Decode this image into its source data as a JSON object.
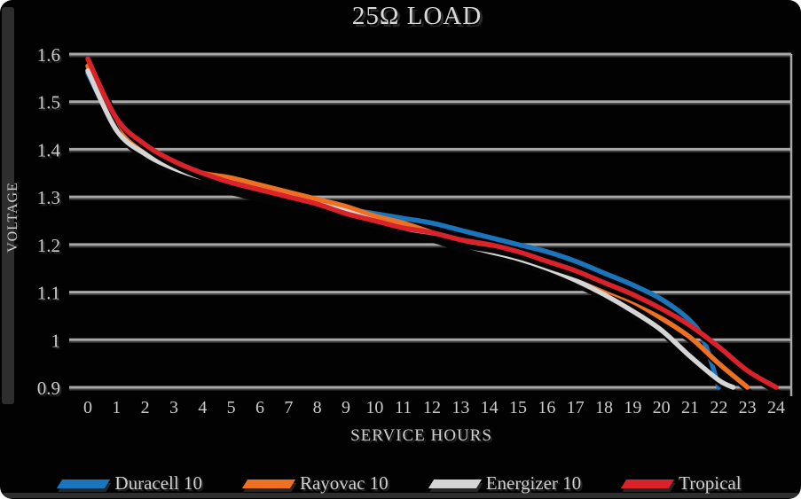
{
  "title": "25Ω LOAD",
  "y_axis_label": "VOLTAGE",
  "x_axis_label": "SERVICE HOURS",
  "chart_data": {
    "type": "line",
    "title": "25Ω LOAD",
    "xlabel": "SERVICE HOURS",
    "ylabel": "VOLTAGE",
    "xlim": [
      0,
      24
    ],
    "ylim": [
      0.9,
      1.6
    ],
    "y_tick_step": 0.1,
    "y_tick_labels": [
      "0.9",
      "1",
      "1.1",
      "1.2",
      "1.3",
      "1.4",
      "1.5",
      "1.6"
    ],
    "x_ticks": [
      0,
      1,
      2,
      3,
      4,
      5,
      6,
      7,
      8,
      9,
      10,
      11,
      12,
      13,
      14,
      15,
      16,
      17,
      18,
      19,
      20,
      21,
      22,
      23,
      24
    ],
    "grid": "horizontal",
    "gridline_color": "#a8a8a8",
    "background_color": "#020202",
    "legend_position": "bottom",
    "series": [
      {
        "name": "Duracell 10",
        "color": "#1b75bc",
        "points": [
          [
            0,
            1.56
          ],
          [
            1,
            1.445
          ],
          [
            2,
            1.395
          ],
          [
            3,
            1.36
          ],
          [
            4,
            1.335
          ],
          [
            5,
            1.32
          ],
          [
            6,
            1.305
          ],
          [
            7,
            1.295
          ],
          [
            8,
            1.285
          ],
          [
            9,
            1.275
          ],
          [
            10,
            1.265
          ],
          [
            11,
            1.255
          ],
          [
            12,
            1.245
          ],
          [
            13,
            1.23
          ],
          [
            14,
            1.215
          ],
          [
            15,
            1.2
          ],
          [
            16,
            1.185
          ],
          [
            17,
            1.165
          ],
          [
            18,
            1.14
          ],
          [
            19,
            1.115
          ],
          [
            20,
            1.085
          ],
          [
            21,
            1.04
          ],
          [
            21.5,
            0.995
          ],
          [
            22,
            0.9
          ]
        ]
      },
      {
        "name": "Rayovac 10",
        "color": "#ee7023",
        "points": [
          [
            0,
            1.575
          ],
          [
            1,
            1.45
          ],
          [
            2,
            1.4
          ],
          [
            3,
            1.37
          ],
          [
            4,
            1.35
          ],
          [
            5,
            1.34
          ],
          [
            6,
            1.325
          ],
          [
            7,
            1.31
          ],
          [
            8,
            1.295
          ],
          [
            9,
            1.28
          ],
          [
            10,
            1.26
          ],
          [
            11,
            1.245
          ],
          [
            12,
            1.225
          ],
          [
            13,
            1.205
          ],
          [
            14,
            1.19
          ],
          [
            15,
            1.17
          ],
          [
            16,
            1.15
          ],
          [
            17,
            1.13
          ],
          [
            18,
            1.105
          ],
          [
            19,
            1.08
          ],
          [
            20,
            1.045
          ],
          [
            21,
            1.005
          ],
          [
            22,
            0.95
          ],
          [
            23,
            0.9
          ]
        ]
      },
      {
        "name": "Energizer 10",
        "color": "#d5d5d5",
        "points": [
          [
            0,
            1.565
          ],
          [
            1,
            1.44
          ],
          [
            2,
            1.39
          ],
          [
            3,
            1.36
          ],
          [
            4,
            1.34
          ],
          [
            5,
            1.325
          ],
          [
            6,
            1.31
          ],
          [
            7,
            1.3
          ],
          [
            8,
            1.285
          ],
          [
            9,
            1.27
          ],
          [
            10,
            1.25
          ],
          [
            11,
            1.235
          ],
          [
            12,
            1.22
          ],
          [
            13,
            1.2
          ],
          [
            14,
            1.185
          ],
          [
            15,
            1.17
          ],
          [
            16,
            1.15
          ],
          [
            17,
            1.125
          ],
          [
            18,
            1.095
          ],
          [
            19,
            1.06
          ],
          [
            20,
            1.02
          ],
          [
            21,
            0.965
          ],
          [
            22,
            0.915
          ],
          [
            22.5,
            0.9
          ]
        ]
      },
      {
        "name": "Tropical",
        "color": "#d9222a",
        "points": [
          [
            0,
            1.59
          ],
          [
            1,
            1.465
          ],
          [
            2,
            1.41
          ],
          [
            3,
            1.375
          ],
          [
            4,
            1.35
          ],
          [
            5,
            1.33
          ],
          [
            6,
            1.315
          ],
          [
            7,
            1.3
          ],
          [
            8,
            1.285
          ],
          [
            9,
            1.265
          ],
          [
            10,
            1.25
          ],
          [
            11,
            1.235
          ],
          [
            12,
            1.225
          ],
          [
            13,
            1.21
          ],
          [
            14,
            1.2
          ],
          [
            15,
            1.185
          ],
          [
            16,
            1.165
          ],
          [
            17,
            1.145
          ],
          [
            18,
            1.12
          ],
          [
            19,
            1.095
          ],
          [
            20,
            1.065
          ],
          [
            21,
            1.03
          ],
          [
            22,
            0.985
          ],
          [
            23,
            0.935
          ],
          [
            24,
            0.9
          ]
        ]
      }
    ]
  }
}
